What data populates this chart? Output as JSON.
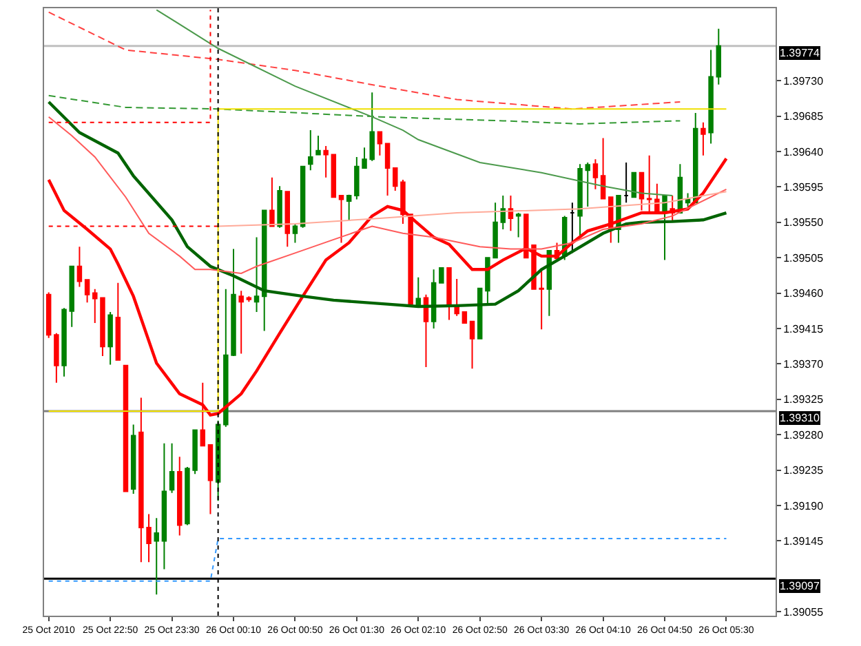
{
  "chart_data": {
    "type": "candlestick",
    "x": [
      "2010-10-25T22:10",
      "2010-10-25T22:15",
      "2010-10-25T22:20",
      "2010-10-25T22:25",
      "2010-10-25T22:30",
      "2010-10-25T22:35",
      "2010-10-25T22:40",
      "2010-10-25T22:45",
      "2010-10-25T22:50",
      "2010-10-25T22:55",
      "2010-10-25T23:00",
      "2010-10-25T23:05",
      "2010-10-25T23:10",
      "2010-10-25T23:15",
      "2010-10-25T23:20",
      "2010-10-25T23:25",
      "2010-10-25T23:30",
      "2010-10-25T23:35",
      "2010-10-25T23:40",
      "2010-10-25T23:45",
      "2010-10-25T23:50",
      "2010-10-25T23:55",
      "2010-10-26T00:00",
      "2010-10-26T00:05",
      "2010-10-26T00:10",
      "2010-10-26T00:15",
      "2010-10-26T00:20",
      "2010-10-26T00:25",
      "2010-10-26T00:30",
      "2010-10-26T00:35",
      "2010-10-26T00:40",
      "2010-10-26T00:45",
      "2010-10-26T00:50",
      "2010-10-26T00:55",
      "2010-10-26T01:00",
      "2010-10-26T01:05",
      "2010-10-26T01:10",
      "2010-10-26T01:15",
      "2010-10-26T01:20",
      "2010-10-26T01:25",
      "2010-10-26T01:30",
      "2010-10-26T01:35",
      "2010-10-26T01:40",
      "2010-10-26T01:45",
      "2010-10-26T01:50",
      "2010-10-26T01:55",
      "2010-10-26T02:00",
      "2010-10-26T02:05",
      "2010-10-26T02:10",
      "2010-10-26T02:15",
      "2010-10-26T02:20",
      "2010-10-26T02:25",
      "2010-10-26T02:30",
      "2010-10-26T02:35",
      "2010-10-26T02:40",
      "2010-10-26T02:45",
      "2010-10-26T02:50",
      "2010-10-26T02:55",
      "2010-10-26T03:00",
      "2010-10-26T03:05",
      "2010-10-26T03:10",
      "2010-10-26T03:15",
      "2010-10-26T03:20",
      "2010-10-26T03:25",
      "2010-10-26T03:30",
      "2010-10-26T03:35",
      "2010-10-26T03:40",
      "2010-10-26T03:45",
      "2010-10-26T03:50",
      "2010-10-26T03:55",
      "2010-10-26T04:00",
      "2010-10-26T04:05",
      "2010-10-26T04:10",
      "2010-10-26T04:15",
      "2010-10-26T04:20",
      "2010-10-26T04:25",
      "2010-10-26T04:30",
      "2010-10-26T04:35",
      "2010-10-26T04:40",
      "2010-10-26T04:45",
      "2010-10-26T04:50",
      "2010-10-26T04:55",
      "2010-10-26T05:00",
      "2010-10-26T05:05",
      "2010-10-26T05:10",
      "2010-10-26T05:15",
      "2010-10-26T05:20",
      "2010-10-26T05:25"
    ],
    "ohlc": [
      [
        1.39458,
        1.39461,
        1.39403,
        1.39407
      ],
      [
        1.39407,
        1.39409,
        1.39346,
        1.39368
      ],
      [
        1.39368,
        1.39441,
        1.39354,
        1.39439
      ],
      [
        1.39437,
        1.39494,
        1.39417,
        1.39494
      ],
      [
        1.39494,
        1.39519,
        1.39468,
        1.39475
      ],
      [
        1.39477,
        1.39477,
        1.39448,
        1.39458
      ],
      [
        1.3946,
        1.39465,
        1.39422,
        1.39453
      ],
      [
        1.39454,
        1.39454,
        1.3938,
        1.39392
      ],
      [
        1.39392,
        1.39436,
        1.39369,
        1.39432
      ],
      [
        1.39429,
        1.39473,
        1.39375,
        1.39375
      ],
      [
        1.39368,
        1.39368,
        1.39208,
        1.39208
      ],
      [
        1.39211,
        1.39293,
        1.39205,
        1.39279
      ],
      [
        1.39283,
        1.39327,
        1.39118,
        1.39162
      ],
      [
        1.39162,
        1.39179,
        1.39118,
        1.39142
      ],
      [
        1.39145,
        1.39174,
        1.39077,
        1.39155
      ],
      [
        1.39145,
        1.39269,
        1.39109,
        1.39208
      ],
      [
        1.3921,
        1.39269,
        1.39206,
        1.39233
      ],
      [
        1.39233,
        1.39252,
        1.39152,
        1.39165
      ],
      [
        1.39167,
        1.39239,
        1.39165,
        1.39237
      ],
      [
        1.39235,
        1.39286,
        1.3923,
        1.39286
      ],
      [
        1.39286,
        1.39346,
        1.39266,
        1.39266
      ],
      [
        1.39267,
        1.39267,
        1.39179,
        1.39222
      ],
      [
        1.3922,
        1.39298,
        1.39196,
        1.39293
      ],
      [
        1.39293,
        1.39465,
        1.3929,
        1.39381
      ],
      [
        1.39381,
        1.39516,
        1.3938,
        1.39458
      ],
      [
        1.39456,
        1.39463,
        1.39383,
        1.39449
      ],
      [
        1.39454,
        1.39456,
        1.39449,
        1.39452
      ],
      [
        1.39449,
        1.39531,
        1.39436,
        1.39456
      ],
      [
        1.39456,
        1.39565,
        1.39412,
        1.39565
      ],
      [
        1.39565,
        1.39607,
        1.39545,
        1.39545
      ],
      [
        1.39545,
        1.39596,
        1.39543,
        1.3959
      ],
      [
        1.39589,
        1.39589,
        1.39519,
        1.39536
      ],
      [
        1.39536,
        1.39548,
        1.39524,
        1.39545
      ],
      [
        1.39545,
        1.39621,
        1.39543,
        1.39621
      ],
      [
        1.39624,
        1.39667,
        1.39616,
        1.39633
      ],
      [
        1.39636,
        1.3966,
        1.39636,
        1.39641
      ],
      [
        1.39641,
        1.39647,
        1.39607,
        1.39636
      ],
      [
        1.39636,
        1.39636,
        1.39582,
        1.39582
      ],
      [
        1.39584,
        1.39584,
        1.39524,
        1.39579
      ],
      [
        1.39577,
        1.39585,
        1.39553,
        1.39584
      ],
      [
        1.39584,
        1.39633,
        1.39579,
        1.39621
      ],
      [
        1.39619,
        1.39645,
        1.39619,
        1.3963
      ],
      [
        1.3963,
        1.39715,
        1.39628,
        1.39665
      ],
      [
        1.39665,
        1.39665,
        1.39635,
        1.3965
      ],
      [
        1.3965,
        1.3965,
        1.39584,
        1.39619
      ],
      [
        1.39619,
        1.39619,
        1.3959,
        1.39596
      ],
      [
        1.39601,
        1.39604,
        1.39548,
        1.3956
      ],
      [
        1.3956,
        1.3956,
        1.39446,
        1.39446
      ],
      [
        1.39444,
        1.3948,
        1.39443,
        1.39453
      ],
      [
        1.39454,
        1.39458,
        1.39366,
        1.39424
      ],
      [
        1.39424,
        1.3949,
        1.39415,
        1.39473
      ],
      [
        1.39473,
        1.39492,
        1.39473,
        1.39492
      ],
      [
        1.39492,
        1.39492,
        1.39426,
        1.39444
      ],
      [
        1.39444,
        1.39478,
        1.39431,
        1.39434
      ],
      [
        1.39436,
        1.39436,
        1.39422,
        1.39422
      ],
      [
        1.39424,
        1.39424,
        1.39364,
        1.39402
      ],
      [
        1.39402,
        1.39466,
        1.39402,
        1.39466
      ],
      [
        1.39463,
        1.39505,
        1.39446,
        1.39505
      ],
      [
        1.39505,
        1.39575,
        1.39505,
        1.3955
      ],
      [
        1.3955,
        1.39584,
        1.39541,
        1.39567
      ],
      [
        1.39567,
        1.39584,
        1.39539,
        1.39555
      ],
      [
        1.39558,
        1.39562,
        1.39531,
        1.3956
      ],
      [
        1.3956,
        1.3956,
        1.39505,
        1.39505
      ],
      [
        1.39521,
        1.39521,
        1.39465,
        1.39465
      ],
      [
        1.39466,
        1.3949,
        1.39414,
        1.39465
      ],
      [
        1.39465,
        1.39514,
        1.39431,
        1.39514
      ],
      [
        1.39514,
        1.39524,
        1.39504,
        1.39504
      ],
      [
        1.39507,
        1.39558,
        1.39502,
        1.39556
      ],
      [
        1.39562,
        1.39575,
        1.39511,
        1.39562
      ],
      [
        1.39558,
        1.39624,
        1.39531,
        1.39618
      ],
      [
        1.39616,
        1.39626,
        1.3957,
        1.39623
      ],
      [
        1.39624,
        1.3963,
        1.39592,
        1.39607
      ],
      [
        1.39609,
        1.39657,
        1.3958,
        1.3958
      ],
      [
        1.39582,
        1.39582,
        1.39524,
        1.39541
      ],
      [
        1.39541,
        1.39584,
        1.39524,
        1.39584
      ],
      [
        1.39584,
        1.39626,
        1.39575,
        1.39584
      ],
      [
        1.39582,
        1.39613,
        1.39582,
        1.39613
      ],
      [
        1.39613,
        1.39613,
        1.39565,
        1.3958
      ],
      [
        1.3958,
        1.39635,
        1.39562,
        1.39579
      ],
      [
        1.39579,
        1.39599,
        1.39563,
        1.39563
      ],
      [
        1.39563,
        1.39584,
        1.39502,
        1.39584
      ],
      [
        1.39567,
        1.39584,
        1.3955,
        1.39562
      ],
      [
        1.39562,
        1.39624,
        1.39562,
        1.39607
      ],
      [
        1.39575,
        1.39587,
        1.3957,
        1.39579
      ],
      [
        1.39575,
        1.39689,
        1.39575,
        1.39669
      ],
      [
        1.39669,
        1.39677,
        1.39635,
        1.39662
      ],
      [
        1.39664,
        1.39769,
        1.3965,
        1.39735
      ],
      [
        1.39735,
        1.39796,
        1.39725,
        1.39774
      ]
    ],
    "colors": [
      "#ff0000",
      "#ff0000",
      "#008000",
      "#008000",
      "#ff0000",
      "#ff0000",
      "#ff0000",
      "#ff0000",
      "#008000",
      "#ff0000",
      "#ff0000",
      "#008000",
      "#ff0000",
      "#ff0000",
      "#008000",
      "#008000",
      "#008000",
      "#ff0000",
      "#008000",
      "#008000",
      "#ff0000",
      "#ff0000",
      "#008000",
      "#008000",
      "#008000",
      "#ff0000",
      "#ff0000",
      "#008000",
      "#008000",
      "#ff0000",
      "#008000",
      "#ff0000",
      "#008000",
      "#008000",
      "#008000",
      "#008000",
      "#ff0000",
      "#ff0000",
      "#ff0000",
      "#008000",
      "#008000",
      "#008000",
      "#008000",
      "#ff0000",
      "#ff0000",
      "#ff0000",
      "#ff0000",
      "#ff0000",
      "#008000",
      "#ff0000",
      "#008000",
      "#008000",
      "#ff0000",
      "#ff0000",
      "#ff0000",
      "#ff0000",
      "#008000",
      "#008000",
      "#008000",
      "#008000",
      "#ff0000",
      "#008000",
      "#ff0000",
      "#ff0000",
      "#ff0000",
      "#008000",
      "#ff0000",
      "#008000",
      "#000000",
      "#008000",
      "#008000",
      "#ff0000",
      "#ff0000",
      "#ff0000",
      "#008000",
      "#000000",
      "#008000",
      "#ff0000",
      "#ff0000",
      "#ff0000",
      "#008000",
      "#ff0000",
      "#008000",
      "#008000",
      "#008000",
      "#ff0000",
      "#008000",
      "#008000"
    ],
    "series": [
      {
        "type": "line",
        "color": "#ff0000",
        "line_style": "solid",
        "x": [
          "2010-10-25T22:10",
          "2010-10-25T22:20",
          "2010-10-25T22:35",
          "2010-10-25T22:50",
          "2010-10-25T22:55",
          "2010-10-25T23:05",
          "2010-10-25T23:20",
          "2010-10-25T23:35",
          "2010-10-25T23:50",
          "2010-10-25T23:55",
          "2010-10-26T00:00",
          "2010-10-26T00:15",
          "2010-10-26T00:25",
          "2010-10-26T00:40",
          "2010-10-26T00:55",
          "2010-10-26T01:10",
          "2010-10-26T01:25",
          "2010-10-26T01:40",
          "2010-10-26T01:50",
          "2010-10-26T02:00",
          "2010-10-26T02:10",
          "2010-10-26T02:20",
          "2010-10-26T02:30",
          "2010-10-26T02:45",
          "2010-10-26T02:55",
          "2010-10-26T03:05",
          "2010-10-26T03:20",
          "2010-10-26T03:30",
          "2010-10-26T03:40",
          "2010-10-26T03:50",
          "2010-10-26T04:00",
          "2010-10-26T04:15",
          "2010-10-26T04:25",
          "2010-10-26T04:35",
          "2010-10-26T04:50",
          "2010-10-26T05:05",
          "2010-10-26T05:15",
          "2010-10-26T05:30"
        ],
        "values": [
          1.39604,
          1.39565,
          1.39541,
          1.39516,
          1.39497,
          1.39456,
          1.39371,
          1.39332,
          1.39318,
          1.39305,
          1.39307,
          1.39332,
          1.39361,
          1.39409,
          1.39456,
          1.39502,
          1.39524,
          1.39558,
          1.3957,
          1.39565,
          1.39548,
          1.39531,
          1.39522,
          1.3949,
          1.3949,
          1.39502,
          1.39517,
          1.39507,
          1.39507,
          1.39524,
          1.39539,
          1.39548,
          1.39555,
          1.39562,
          1.39562,
          1.39567,
          1.39587,
          1.39631
        ]
      },
      {
        "type": "line",
        "color": "#006400",
        "line_style": "solid",
        "x": [
          "2010-10-25T22:10",
          "2010-10-25T22:30",
          "2010-10-25T22:55",
          "2010-10-25T23:05",
          "2010-10-25T23:30",
          "2010-10-25T23:40",
          "2010-10-25T23:55",
          "2010-10-26T00:10",
          "2010-10-26T00:30",
          "2010-10-26T00:55",
          "2010-10-26T01:15",
          "2010-10-26T01:50",
          "2010-10-26T02:10",
          "2010-10-26T02:35",
          "2010-10-26T03:00",
          "2010-10-26T03:15",
          "2010-10-26T03:30",
          "2010-10-26T03:45",
          "2010-10-26T04:10",
          "2010-10-26T04:25",
          "2010-10-26T04:35",
          "2010-10-26T04:55",
          "2010-10-26T05:15",
          "2010-10-26T05:30"
        ],
        "values": [
          1.39703,
          1.39664,
          1.39638,
          1.39609,
          1.39553,
          1.39519,
          1.39494,
          1.39482,
          1.39463,
          1.39456,
          1.39451,
          1.39446,
          1.39443,
          1.39444,
          1.39446,
          1.39463,
          1.3949,
          1.39507,
          1.39536,
          1.39548,
          1.3955,
          1.39551,
          1.39553,
          1.39562
        ]
      },
      {
        "type": "line",
        "color": "#ff5a5a",
        "line_style": "solid",
        "x": [
          "2010-10-25T22:10",
          "2010-10-25T22:25",
          "2010-10-25T22:40",
          "2010-10-25T23:00",
          "2010-10-25T23:15",
          "2010-10-25T23:35",
          "2010-10-25T23:45",
          "2010-10-25T23:55",
          "2010-10-26T00:15",
          "2010-10-26T00:25",
          "2010-10-26T00:50",
          "2010-10-26T01:15",
          "2010-10-26T01:40",
          "2010-10-26T02:00",
          "2010-10-26T02:20",
          "2010-10-26T02:50",
          "2010-10-26T03:10",
          "2010-10-26T03:30",
          "2010-10-26T03:50",
          "2010-10-26T04:10",
          "2010-10-26T04:35",
          "2010-10-26T04:55",
          "2010-10-26T05:30"
        ],
        "values": [
          1.39684,
          1.3966,
          1.39633,
          1.39582,
          1.39536,
          1.39507,
          1.3949,
          1.3949,
          1.39485,
          1.39494,
          1.39511,
          1.39528,
          1.39545,
          1.39536,
          1.39531,
          1.39519,
          1.39516,
          1.39516,
          1.39524,
          1.39541,
          1.39548,
          1.39558,
          1.39592
        ]
      },
      {
        "type": "line",
        "color": "#ffaa99",
        "line_style": "solid",
        "x": [
          "2010-10-26T00:00",
          "2010-10-26T00:50",
          "2010-10-26T01:45",
          "2010-10-26T02:35",
          "2010-10-26T03:55",
          "2010-10-26T04:50",
          "2010-10-26T05:30"
        ],
        "values": [
          1.39545,
          1.39548,
          1.39555,
          1.39562,
          1.39567,
          1.39575,
          1.39589
        ]
      },
      {
        "type": "line",
        "color": "#ff0000",
        "line_style": "dotted",
        "x": [
          "2010-10-25T22:10",
          "2010-10-26T00:00"
        ],
        "values": [
          1.39545,
          1.39545
        ]
      },
      {
        "type": "line",
        "color": "#ff4040",
        "line_style": "dashed",
        "x": [
          "2010-10-25T22:10",
          "2010-10-25T23:00",
          "2010-10-26T00:00",
          "2010-10-26T00:50",
          "2010-10-26T01:45",
          "2010-10-26T02:35",
          "2010-10-26T03:50",
          "2010-10-26T05:00"
        ],
        "values": [
          1.39817,
          1.39769,
          1.39757,
          1.39743,
          1.39723,
          1.39706,
          1.39694,
          1.39703
        ]
      },
      {
        "type": "line",
        "color": "#339933",
        "line_style": "dashed",
        "x": [
          "2010-10-25T22:10",
          "2010-10-25T23:00",
          "2010-10-26T00:00",
          "2010-10-26T01:45",
          "2010-10-26T03:05",
          "2010-10-26T03:55",
          "2010-10-26T05:00"
        ],
        "values": [
          1.39711,
          1.39696,
          1.39694,
          1.39684,
          1.39679,
          1.39675,
          1.39679
        ]
      },
      {
        "type": "line",
        "color": "#4c9a4c",
        "line_style": "solid",
        "x": [
          "2010-10-25T23:20",
          "2010-10-26T00:00",
          "2010-10-26T00:50",
          "2010-10-26T01:40",
          "2010-10-26T02:00",
          "2010-10-26T02:10",
          "2010-10-26T02:50",
          "2010-10-26T03:30",
          "2010-10-26T04:10",
          "2010-10-26T04:35",
          "2010-10-26T04:55"
        ],
        "values": [
          1.3982,
          1.39771,
          1.39723,
          1.39684,
          1.39667,
          1.39655,
          1.39626,
          1.39613,
          1.39596,
          1.39587,
          1.39584
        ]
      },
      {
        "type": "step",
        "color": "#f0e000",
        "line_style": "solid",
        "x": [
          "2010-10-25T22:10",
          "2010-10-26T00:00",
          "2010-10-26T05:30"
        ],
        "values": [
          1.3931,
          1.39694,
          1.39694
        ]
      },
      {
        "type": "step",
        "color": "#ff0000",
        "line_style": "dotted",
        "x": [
          "2010-10-25T22:10",
          "2010-10-25T23:55"
        ],
        "values": [
          1.39677,
          1.3982
        ]
      },
      {
        "type": "line",
        "color": "#3399ff",
        "line_style": "dotted",
        "x": [
          "2010-10-25T22:10",
          "2010-10-25T23:55",
          "2010-10-26T00:00",
          "2010-10-26T05:30"
        ],
        "values": [
          1.39094,
          1.39094,
          1.39148,
          1.39148
        ]
      }
    ],
    "ref_lines": [
      {
        "axis": "y",
        "value": 1.39774,
        "label": "1.39774",
        "color": "#c0c0c0"
      },
      {
        "axis": "y",
        "value": 1.3931,
        "label": "1.39310",
        "color": "#808080"
      },
      {
        "axis": "y",
        "value": 1.39097,
        "label": "1.39097",
        "color": "#000000"
      },
      {
        "axis": "x",
        "value": "2010-10-26T00:00",
        "color": "#000000",
        "line_style": "dotted"
      }
    ],
    "xlim": [
      "2010-10-25T22:07",
      "2010-10-26T06:02"
    ],
    "xticks": [
      {
        "value": "2010-10-25T22:10",
        "label": "25 Oct 2010"
      },
      {
        "value": "2010-10-25T22:50",
        "label": "25 Oct 22:50"
      },
      {
        "value": "2010-10-25T23:30",
        "label": "25 Oct 23:30"
      },
      {
        "value": "2010-10-26T00:10",
        "label": "26 Oct 00:10"
      },
      {
        "value": "2010-10-26T00:50",
        "label": "26 Oct 00:50"
      },
      {
        "value": "2010-10-26T01:30",
        "label": "26 Oct 01:30"
      },
      {
        "value": "2010-10-26T02:10",
        "label": "26 Oct 02:10"
      },
      {
        "value": "2010-10-26T02:50",
        "label": "26 Oct 02:50"
      },
      {
        "value": "2010-10-26T03:30",
        "label": "26 Oct 03:30"
      },
      {
        "value": "2010-10-26T04:10",
        "label": "26 Oct 04:10"
      },
      {
        "value": "2010-10-26T04:50",
        "label": "26 Oct 04:50"
      },
      {
        "value": "2010-10-26T05:30",
        "label": "26 Oct 05:30"
      }
    ],
    "ylim": [
      1.3905,
      1.39822
    ],
    "yticks": [
      {
        "value": 1.3973,
        "label": "1.39730"
      },
      1.39685,
      {
        "value": 1.3964,
        "label": "1.39640"
      },
      1.39595,
      {
        "value": 1.3955,
        "label": "1.39550"
      },
      1.39505,
      {
        "value": 1.3946,
        "label": "1.39460"
      },
      1.39415,
      {
        "value": 1.3937,
        "label": "1.39370"
      },
      1.39325,
      {
        "value": 1.3928,
        "label": "1.39280"
      },
      1.39235,
      {
        "value": 1.3919,
        "label": "1.39190"
      },
      1.39145,
      1.39055
    ],
    "tick_labels": true
  }
}
